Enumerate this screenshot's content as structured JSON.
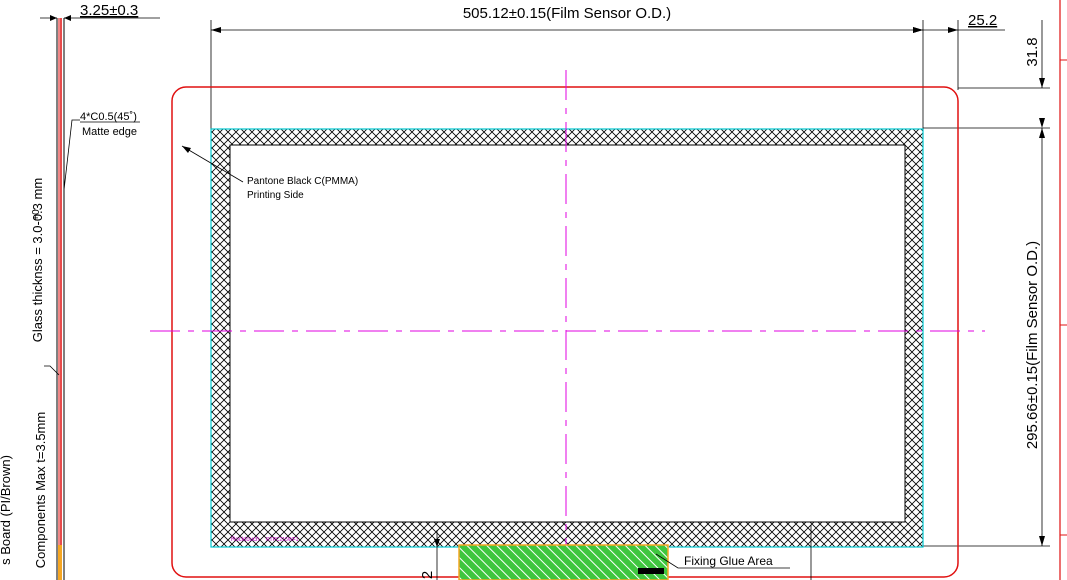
{
  "dimensions": {
    "cover_thickness": "3.25±0.3",
    "sensor_width": "505.12±0.15(Film Sensor O.D.)",
    "right_margin": "25.2",
    "top_margin": "31.8",
    "sensor_height": "295.66±0.15(Film Sensor O.D.)",
    "bottom_offset": "2"
  },
  "annotations": {
    "chamfer": "4*C0.5(45˚)",
    "matte_edge": "Matte edge",
    "printing_line1": "Pantone Black C(PMMA)",
    "printing_line2": "Printing Side",
    "glue_area": "Fixing Glue Area",
    "tail_label": "Rocktouch",
    "tail_part": "RTPC215WF1"
  },
  "side_view": {
    "tolerance_plus": "+0",
    "glass_thickness": "Glass thicknss = 3.0-0.3 mm",
    "components": "Components Max t=3.5mm",
    "board": "s Board (PI/Brown)"
  },
  "colors": {
    "outline": "#e01010",
    "center_line": "#e000e0",
    "sensor_edge": "#00c8d0",
    "glue_fill": "#3ec63e"
  }
}
